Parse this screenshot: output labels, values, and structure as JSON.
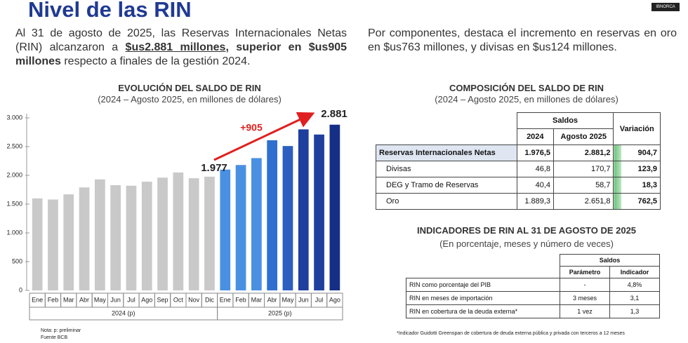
{
  "header": {
    "title": "Nivel de las RIN",
    "logo": "IBNORCA"
  },
  "left_text": [
    "Al 31 de agosto de 2025, las Reservas Internacionales Netas (RIN) alcanzaron a ",
    "$us2.881 millones",
    ", superior en ",
    "$us905 millones",
    " respecto a finales de la gestión 2024."
  ],
  "right_text": "Por componentes, destaca el incremento en reservas en oro en $us763 millones, y divisas en $us124 millones.",
  "chart_data": {
    "type": "bar",
    "title": "EVOLUCIÓN DEL SALDO DE RIN",
    "subtitle": "(2024 – Agosto 2025, en millones de dólares)",
    "categories": [
      "Ene",
      "Feb",
      "Mar",
      "Abr",
      "May",
      "Jun",
      "Jul",
      "Ago",
      "Sep",
      "Oct",
      "Nov",
      "Dic",
      "Ene",
      "Feb",
      "Mar",
      "Abr",
      "May",
      "Jun",
      "Jul",
      "Ago"
    ],
    "values": [
      1600,
      1580,
      1670,
      1790,
      1930,
      1830,
      1820,
      1890,
      1960,
      2050,
      1950,
      1977,
      2100,
      2180,
      2300,
      2610,
      2510,
      2800,
      2710,
      2881
    ],
    "colors": [
      "#c9c9c9",
      "#c9c9c9",
      "#c9c9c9",
      "#c9c9c9",
      "#c9c9c9",
      "#c9c9c9",
      "#c9c9c9",
      "#c9c9c9",
      "#c9c9c9",
      "#c9c9c9",
      "#c9c9c9",
      "#c9c9c9",
      "#4a90e2",
      "#4a90e2",
      "#4a90e2",
      "#2f6fd0",
      "#2c5fbf",
      "#1f3f9e",
      "#1f3f9e",
      "#152f86"
    ],
    "ylim": [
      0,
      3000
    ],
    "yticks": [
      0,
      500,
      {
        "value": 1000,
        "label": "1.000"
      },
      {
        "value": 1500,
        "label": "1.500"
      },
      {
        "value": 2000,
        "label": "2.000"
      },
      {
        "value": 2500,
        "label": "2.500"
      },
      {
        "value": 3000,
        "label": "3.000"
      }
    ],
    "groups": [
      "2024 (p)",
      "2025 (p)"
    ],
    "annotations": [
      "1.977",
      "+905",
      "2.881"
    ],
    "notes": [
      "Nota: p: preliminar",
      "Fuente BCB"
    ]
  },
  "composition": {
    "title": "COMPOSICIÓN DEL SALDO DE RIN",
    "subtitle": "(2024 – Agosto 2025, en millones de dólares)",
    "header": {
      "group": "Saldos",
      "columns": [
        "2024",
        "Agosto 2025"
      ],
      "variation": "Variación"
    },
    "rows": [
      [
        "Reservas Internacionales Netas",
        "1.976,5",
        "2.881,2",
        "904,7"
      ],
      [
        "Divisas",
        "46,8",
        "170,7",
        "123,9"
      ],
      [
        "DEG y Tramo de Reservas",
        "40,4",
        "58,7",
        "18,3"
      ],
      [
        "Oro",
        "1.889,3",
        "2.651,8",
        "762,5"
      ]
    ]
  },
  "indicators": {
    "title": "INDICADORES DE RIN AL 31 DE AGOSTO DE 2025",
    "subtitle": "(En porcentaje, meses y número de veces)",
    "header": {
      "group": "Saldos",
      "columns": [
        "Parámetro",
        "Indicador"
      ]
    },
    "rows": [
      [
        "RIN como porcentaje del PIB",
        "-",
        "4,8%"
      ],
      [
        "RIN en meses de importación",
        "3 meses",
        "3,1"
      ],
      [
        "RIN en cobertura de la deuda externa*",
        "1 vez",
        "1,3"
      ]
    ],
    "footnote": "*Indicador Guidotti Greenspan de cobertura de deuda externa pública y privada con terceros a 12 meses"
  }
}
